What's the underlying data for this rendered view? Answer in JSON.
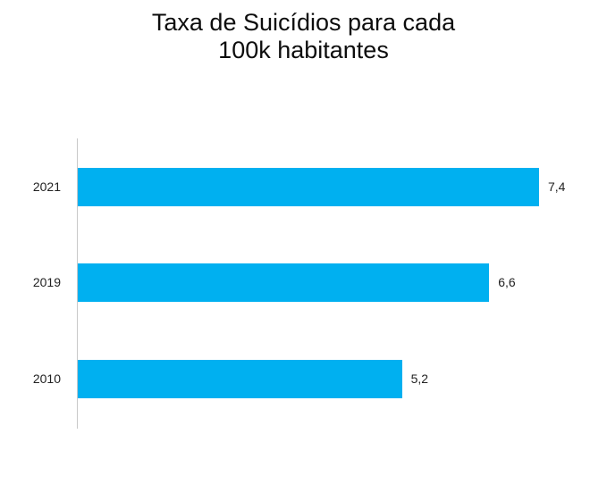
{
  "chart_data": {
    "type": "bar",
    "orientation": "horizontal",
    "title": "Taxa de Suicídios para cada 100k habitantes",
    "title_lines": [
      "Taxa de Suicídios para cada",
      "100k habitantes"
    ],
    "categories": [
      "2021",
      "2019",
      "2010"
    ],
    "values": [
      7.4,
      6.6,
      5.2
    ],
    "value_labels": [
      "7,4",
      "6,6",
      "5,2"
    ],
    "xlabel": "",
    "ylabel": "",
    "xlim": [
      0,
      7.4
    ],
    "grid": false,
    "legend": null,
    "bar_color": "#00B0F0"
  }
}
